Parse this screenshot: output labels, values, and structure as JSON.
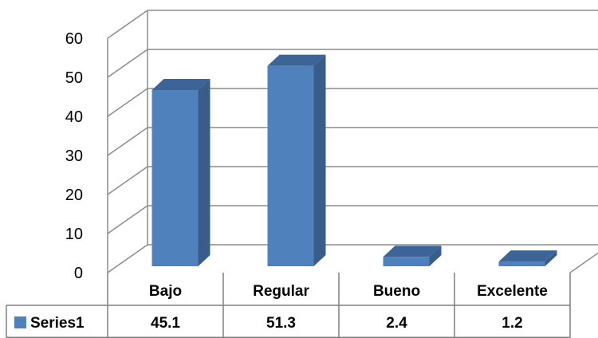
{
  "chart_data": {
    "type": "bar",
    "categories": [
      "Bajo",
      "Regular",
      "Bueno",
      "Excelente"
    ],
    "series": [
      {
        "name": "Series1",
        "values": [
          45.1,
          51.3,
          2.4,
          1.2
        ]
      }
    ],
    "value_labels": [
      "45.1",
      "51.3",
      "2.4",
      "1.2"
    ],
    "y_ticks": [
      0,
      10,
      20,
      30,
      40,
      50,
      60
    ],
    "ylim": [
      0,
      60
    ],
    "grid": true,
    "legend": "data-table",
    "colors": {
      "bar_front": "#4F81BD",
      "bar_side": "#385D8A",
      "bar_top": "#3C6496",
      "grid": "#8C8C8C",
      "legend_key": "#4F81BD"
    }
  }
}
